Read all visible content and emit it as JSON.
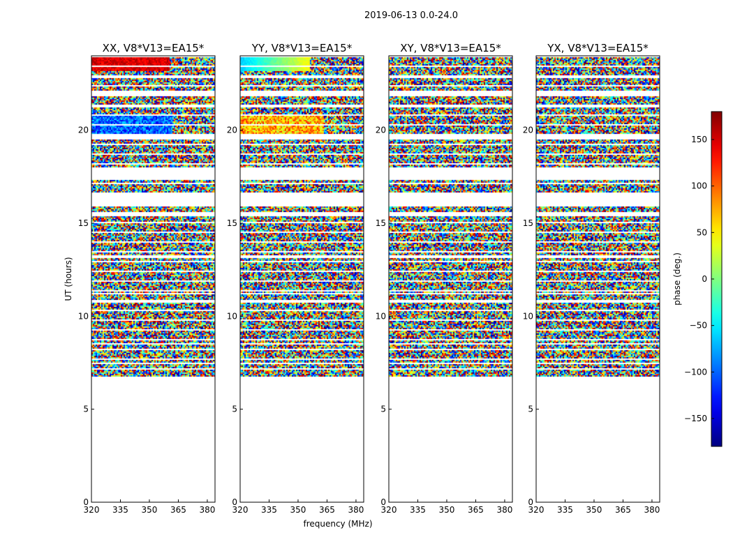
{
  "chart_data": {
    "type": "heatmap",
    "title": "2019-06-13 0.0-24.0",
    "xlabel": "frequency (MHz)",
    "ylabel": "UT (hours)",
    "xlim": [
      320,
      384
    ],
    "ylim": [
      0,
      24
    ],
    "xticks": [
      320,
      335,
      350,
      365,
      380
    ],
    "xtick_labels": [
      "320",
      "335",
      "350",
      "365",
      "380"
    ],
    "yticks": [
      0,
      5,
      10,
      15,
      20
    ],
    "ytick_labels": [
      "0",
      "5",
      "10",
      "15",
      "20"
    ],
    "panels": [
      {
        "title": "XX, V8*V13=EA15*"
      },
      {
        "title": "YY, V8*V13=EA15*"
      },
      {
        "title": "XY, V8*V13=EA15*"
      },
      {
        "title": "YX, V8*V13=EA15*"
      }
    ],
    "data_time_range_hours": [
      6.8,
      24.0
    ],
    "colorbar": {
      "label": "phase (deg.)",
      "range": [
        -180,
        180
      ],
      "ticks": [
        -150,
        -100,
        -50,
        0,
        50,
        100,
        150
      ],
      "tick_labels": [
        "−150",
        "−100",
        "−50",
        "0",
        "50",
        "100",
        "150"
      ],
      "colormap": "jet"
    }
  }
}
